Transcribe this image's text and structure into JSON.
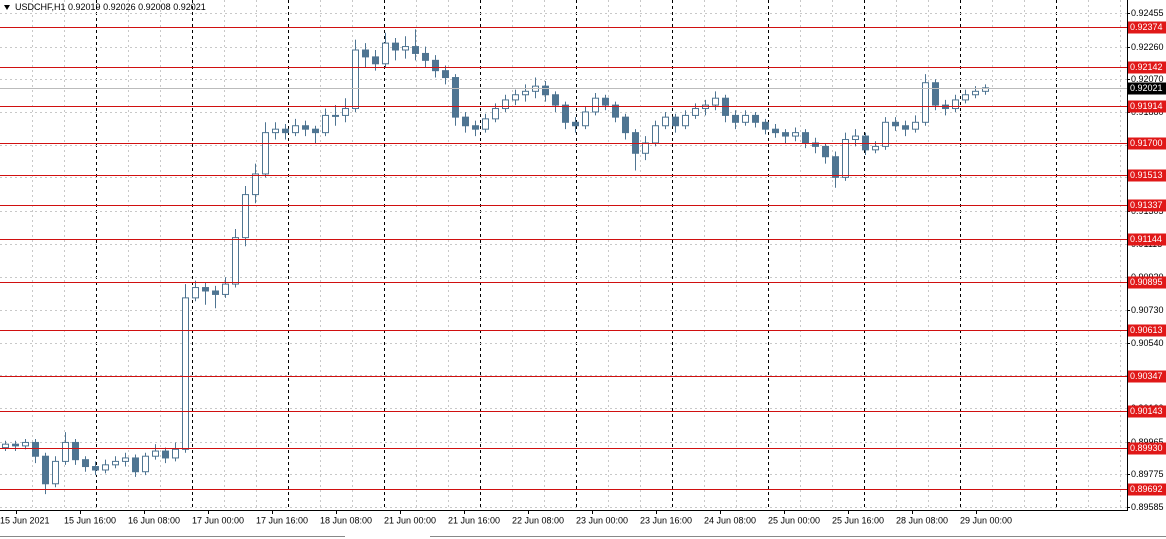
{
  "chart_data": {
    "type": "candlestick",
    "header": {
      "symbol": "USDCHF,H1",
      "open": 0.92019,
      "high": 0.92026,
      "low": 0.92008,
      "close": 0.92021
    },
    "color": "#4f7592",
    "ylim": [
      0.89585,
      0.92455
    ],
    "yticks": [
      0.92455,
      {
        "value": 0.9226,
        "label": "0.92260"
      },
      {
        "value": 0.9207,
        "label": "0.92070"
      },
      {
        "value": 0.9188,
        "label": "0.91880"
      },
      {
        "value": 0.9169,
        "label": "0.91690"
      },
      {
        "value": 0.915,
        "label": "0.91500"
      },
      0.91305,
      0.91115,
      {
        "value": 0.9092,
        "label": "0.90920"
      },
      {
        "value": 0.9073,
        "label": "0.90730"
      },
      {
        "value": 0.9054,
        "label": "0.90540"
      },
      {
        "value": 0.9035,
        "label": "0.90350"
      },
      {
        "value": 0.9016,
        "label": "0.90160"
      },
      0.89965,
      0.89775,
      0.89585
    ],
    "levels": [
      0.92374,
      0.92142,
      0.91914,
      {
        "value": 0.917,
        "label": "0.91700"
      },
      0.91513,
      0.91337,
      0.91144,
      0.90895,
      0.90613,
      0.90347,
      0.90143,
      {
        "value": 0.8993,
        "label": "0.89930"
      },
      0.89692
    ],
    "last_price": 0.92021,
    "x_labels": [
      "15 Jun 2021",
      "15 Jun 16:00",
      "16 Jun 08:00",
      "17 Jun 00:00",
      "17 Jun 16:00",
      "18 Jun 08:00",
      "21 Jun 00:00",
      "21 Jun 16:00",
      "22 Jun 08:00",
      "23 Jun 00:00",
      "23 Jun 16:00",
      "24 Jun 08:00",
      "25 Jun 00:00",
      "25 Jun 16:00",
      "28 Jun 08:00",
      "29 Jun 00:00"
    ],
    "ohlc": [
      [
        0.8993,
        0.8997,
        0.8991,
        0.8995
      ],
      [
        0.8995,
        0.8997,
        0.8991,
        0.8994
      ],
      [
        0.8994,
        0.8998,
        0.8992,
        0.8996
      ],
      [
        0.8996,
        0.8998,
        0.8984,
        0.8988
      ],
      [
        0.8988,
        0.899,
        0.8966,
        0.8972
      ],
      [
        0.8972,
        0.8988,
        0.897,
        0.8985
      ],
      [
        0.8985,
        0.9002,
        0.8983,
        0.8996
      ],
      [
        0.8996,
        0.8998,
        0.8983,
        0.8986
      ],
      [
        0.8986,
        0.8988,
        0.8979,
        0.8982
      ],
      [
        0.8982,
        0.8985,
        0.8977,
        0.898
      ],
      [
        0.898,
        0.8986,
        0.8978,
        0.8983
      ],
      [
        0.8983,
        0.8988,
        0.8981,
        0.8985
      ],
      [
        0.8985,
        0.899,
        0.8982,
        0.8987
      ],
      [
        0.8987,
        0.8989,
        0.8976,
        0.8979
      ],
      [
        0.8979,
        0.899,
        0.8977,
        0.8988
      ],
      [
        0.8988,
        0.8995,
        0.8986,
        0.8991
      ],
      [
        0.8991,
        0.8993,
        0.8984,
        0.8987
      ],
      [
        0.8987,
        0.8996,
        0.8985,
        0.8992
      ],
      [
        0.8992,
        0.9088,
        0.899,
        0.908
      ],
      [
        0.908,
        0.909,
        0.9078,
        0.9086
      ],
      [
        0.9086,
        0.9089,
        0.9076,
        0.9084
      ],
      [
        0.9084,
        0.9087,
        0.9074,
        0.9082
      ],
      [
        0.9082,
        0.9092,
        0.908,
        0.9088
      ],
      [
        0.9088,
        0.912,
        0.9086,
        0.9115
      ],
      [
        0.9115,
        0.9145,
        0.911,
        0.914
      ],
      [
        0.914,
        0.9158,
        0.9135,
        0.9152
      ],
      [
        0.9152,
        0.9182,
        0.915,
        0.9176
      ],
      [
        0.9176,
        0.9182,
        0.9172,
        0.9178
      ],
      [
        0.9178,
        0.9181,
        0.9172,
        0.9176
      ],
      [
        0.9176,
        0.9184,
        0.9174,
        0.918
      ],
      [
        0.918,
        0.9183,
        0.9174,
        0.9178
      ],
      [
        0.9178,
        0.918,
        0.917,
        0.9176
      ],
      [
        0.9176,
        0.919,
        0.9174,
        0.9186
      ],
      [
        0.9186,
        0.9192,
        0.918,
        0.9186
      ],
      [
        0.9186,
        0.9196,
        0.9182,
        0.919
      ],
      [
        0.919,
        0.923,
        0.9188,
        0.9224
      ],
      [
        0.9224,
        0.9228,
        0.9214,
        0.922
      ],
      [
        0.922,
        0.9224,
        0.9212,
        0.9216
      ],
      [
        0.9216,
        0.9234,
        0.9214,
        0.9228
      ],
      [
        0.9228,
        0.9231,
        0.9218,
        0.9224
      ],
      [
        0.9224,
        0.9232,
        0.9219,
        0.9226
      ],
      [
        0.9226,
        0.9236,
        0.9218,
        0.9222
      ],
      [
        0.9222,
        0.9226,
        0.9214,
        0.9218
      ],
      [
        0.9218,
        0.9221,
        0.9208,
        0.9212
      ],
      [
        0.9212,
        0.9215,
        0.9204,
        0.9208
      ],
      [
        0.9208,
        0.921,
        0.918,
        0.9185
      ],
      [
        0.9185,
        0.9188,
        0.9176,
        0.918
      ],
      [
        0.918,
        0.9183,
        0.9174,
        0.9178
      ],
      [
        0.9178,
        0.9187,
        0.9176,
        0.9184
      ],
      [
        0.9184,
        0.9193,
        0.9182,
        0.919
      ],
      [
        0.919,
        0.9198,
        0.9188,
        0.9195
      ],
      [
        0.9195,
        0.9201,
        0.9192,
        0.9198
      ],
      [
        0.9198,
        0.9204,
        0.9194,
        0.92
      ],
      [
        0.92,
        0.9208,
        0.9196,
        0.9203
      ],
      [
        0.9203,
        0.9206,
        0.9194,
        0.9198
      ],
      [
        0.9198,
        0.92,
        0.9188,
        0.9192
      ],
      [
        0.9192,
        0.9194,
        0.9178,
        0.9182
      ],
      [
        0.9182,
        0.9185,
        0.9176,
        0.918
      ],
      [
        0.918,
        0.9191,
        0.9178,
        0.9188
      ],
      [
        0.9188,
        0.9199,
        0.9186,
        0.9196
      ],
      [
        0.9196,
        0.9198,
        0.9189,
        0.9192
      ],
      [
        0.9192,
        0.9194,
        0.9182,
        0.9185
      ],
      [
        0.9185,
        0.9187,
        0.9172,
        0.9176
      ],
      [
        0.9176,
        0.9178,
        0.9154,
        0.9164
      ],
      [
        0.9164,
        0.9174,
        0.916,
        0.917
      ],
      [
        0.917,
        0.9183,
        0.9168,
        0.918
      ],
      [
        0.918,
        0.9188,
        0.9178,
        0.9185
      ],
      [
        0.9185,
        0.9187,
        0.9176,
        0.918
      ],
      [
        0.918,
        0.9189,
        0.9178,
        0.9186
      ],
      [
        0.9186,
        0.9193,
        0.9184,
        0.919
      ],
      [
        0.919,
        0.9195,
        0.9186,
        0.9192
      ],
      [
        0.9192,
        0.92,
        0.9189,
        0.9196
      ],
      [
        0.9196,
        0.9198,
        0.9182,
        0.9186
      ],
      [
        0.9186,
        0.9189,
        0.9178,
        0.9182
      ],
      [
        0.9182,
        0.9189,
        0.918,
        0.9186
      ],
      [
        0.9186,
        0.9188,
        0.9179,
        0.9182
      ],
      [
        0.9182,
        0.9184,
        0.9175,
        0.9178
      ],
      [
        0.9178,
        0.9181,
        0.9173,
        0.9176
      ],
      [
        0.9176,
        0.9178,
        0.917,
        0.9174
      ],
      [
        0.9174,
        0.9179,
        0.9171,
        0.9176
      ],
      [
        0.9176,
        0.9178,
        0.9167,
        0.917
      ],
      [
        0.917,
        0.9173,
        0.9164,
        0.9168
      ],
      [
        0.9168,
        0.917,
        0.9158,
        0.9162
      ],
      [
        0.9162,
        0.9165,
        0.9144,
        0.915
      ],
      [
        0.915,
        0.9176,
        0.9148,
        0.9172
      ],
      [
        0.9172,
        0.9178,
        0.9168,
        0.9174
      ],
      [
        0.9174,
        0.9176,
        0.9163,
        0.9166
      ],
      [
        0.9166,
        0.9171,
        0.9164,
        0.9168
      ],
      [
        0.9168,
        0.9185,
        0.9166,
        0.9182
      ],
      [
        0.9182,
        0.9185,
        0.9177,
        0.918
      ],
      [
        0.918,
        0.9183,
        0.9174,
        0.9178
      ],
      [
        0.9178,
        0.9186,
        0.9176,
        0.9182
      ],
      [
        0.9182,
        0.921,
        0.918,
        0.9205
      ],
      [
        0.9205,
        0.9207,
        0.9189,
        0.9192
      ],
      [
        0.9192,
        0.9195,
        0.9186,
        0.919
      ],
      [
        0.919,
        0.9198,
        0.9188,
        0.9195
      ],
      [
        0.9195,
        0.9201,
        0.9193,
        0.9198
      ],
      [
        0.9198,
        0.9203,
        0.9196,
        0.92
      ],
      [
        0.92,
        0.9204,
        0.9198,
        0.9202
      ]
    ]
  }
}
